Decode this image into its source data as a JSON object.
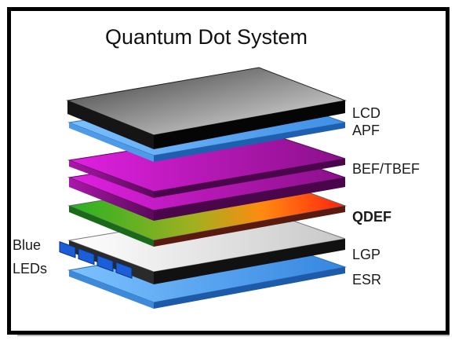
{
  "title": "Quantum Dot System",
  "labels": {
    "lcd": "LCD",
    "apf": "APF",
    "bef": "BEF/TBEF",
    "qdef": "QDEF",
    "lgp": "LGP",
    "esr": "ESR",
    "blue_leds_line1": "Blue",
    "blue_leds_line2": "LEDs"
  },
  "colors": {
    "lcd": "#6e6e6e",
    "apf": "#5aaaf0",
    "bef": "#b010b0",
    "qdef_left": "#2bb52b",
    "qdef_right": "#ff2a1a",
    "lgp": "#e6e6e6",
    "esr": "#4a9ff0",
    "led": "#1a5ed8"
  }
}
